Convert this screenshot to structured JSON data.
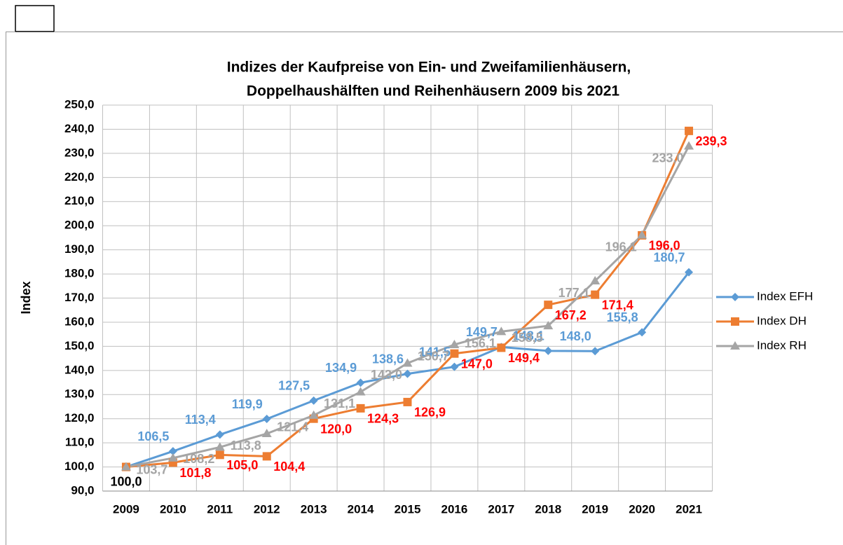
{
  "chart_data": {
    "type": "line",
    "title": [
      "Indizes der Kaufpreise von Ein- und Zweifamilienhäusern,",
      "Doppelhaushälften und Reihenhäusern 2009 bis 2021"
    ],
    "y_label": "Index",
    "categories": [
      "2009",
      "2010",
      "2011",
      "2012",
      "2013",
      "2014",
      "2015",
      "2016",
      "2017",
      "2018",
      "2019",
      "2020",
      "2021"
    ],
    "series": [
      {
        "name": "Index EFH",
        "color": "#5b9bd5",
        "marker": "diamond",
        "label_color": "#5b9bd5",
        "values": [
          100.0,
          106.5,
          113.4,
          119.9,
          127.5,
          134.9,
          138.6,
          141.5,
          149.7,
          148.1,
          148.0,
          155.8,
          180.7
        ],
        "value_labels": [
          null,
          "106,5",
          "113,4",
          "119,9",
          "127,5",
          "134,9",
          "138,6",
          "141,5",
          "149,7",
          "148,1",
          "148,0",
          "155,8",
          "180,7"
        ]
      },
      {
        "name": "Index DH",
        "color": "#ed7d31",
        "marker": "square",
        "label_color": "#ff0000",
        "first_label_color": "#000000",
        "values": [
          100.0,
          101.8,
          105.0,
          104.4,
          120.0,
          124.3,
          126.9,
          147.0,
          149.4,
          167.2,
          171.4,
          196.0,
          239.3
        ],
        "value_labels": [
          "100,0",
          "101,8",
          "105,0",
          "104,4",
          "120,0",
          "124,3",
          "126,9",
          "147,0",
          "149,4",
          "167,2",
          "171,4",
          "196,0",
          "239,3"
        ]
      },
      {
        "name": "Index RH",
        "color": "#a5a5a5",
        "marker": "triangle",
        "label_color": "#a5a5a5",
        "values": [
          100.0,
          103.7,
          108.2,
          113.8,
          121.4,
          131.1,
          143.0,
          150.7,
          156.1,
          158.5,
          177.1,
          196.1,
          233.0
        ],
        "value_labels": [
          null,
          "103,7",
          "108,2",
          "113,8",
          "121,4",
          "131,1",
          "143,0",
          "150,7",
          "156,1",
          "158,5",
          "177,1",
          "196,1",
          "233,0"
        ]
      }
    ],
    "ylim": [
      90,
      250
    ],
    "yticks": [
      {
        "value": 90,
        "label": "90,0"
      },
      {
        "value": 100,
        "label": "100,0"
      },
      {
        "value": 110,
        "label": "110,0"
      },
      {
        "value": 120,
        "label": "120,0"
      },
      {
        "value": 130,
        "label": "130,0"
      },
      {
        "value": 140,
        "label": "140,0"
      },
      {
        "value": 150,
        "label": "150,0"
      },
      {
        "value": 160,
        "label": "160,0"
      },
      {
        "value": 170,
        "label": "170,0"
      },
      {
        "value": 180,
        "label": "180,0"
      },
      {
        "value": 190,
        "label": "190,0"
      },
      {
        "value": 200,
        "label": "200,0"
      },
      {
        "value": 210,
        "label": "210,0"
      },
      {
        "value": 220,
        "label": "220,0"
      },
      {
        "value": 230,
        "label": "230,0"
      },
      {
        "value": 240,
        "label": "240,0"
      },
      {
        "value": 250,
        "label": "250,0"
      }
    ],
    "grid": true,
    "legend": "right"
  }
}
